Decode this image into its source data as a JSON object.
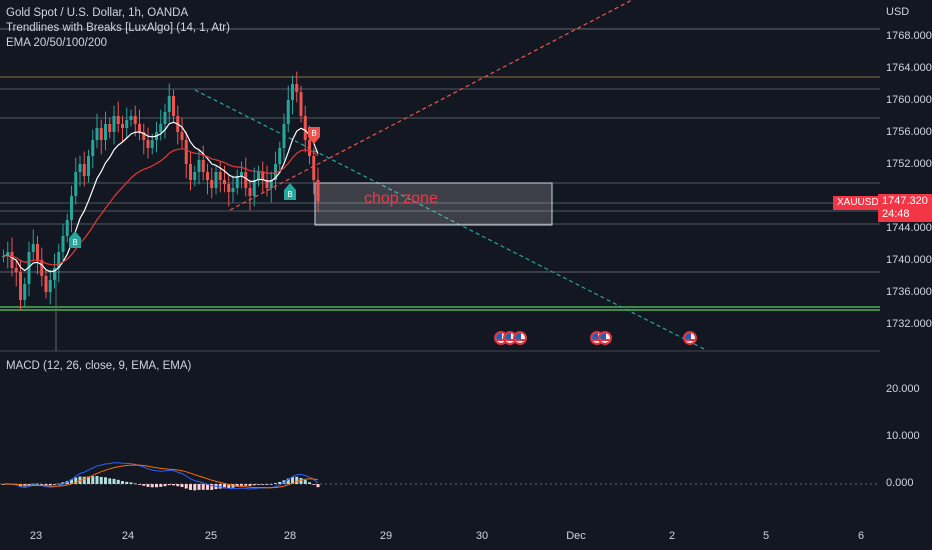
{
  "legend": {
    "symbol": "Gold Spot / U.S. Dollar, 1h, OANDA",
    "indicator1": "Trendlines with Breaks [LuxAlgo] (14, 1, Atr)",
    "indicator2": "EMA 20/50/100/200"
  },
  "macd_legend": "MACD (12, 26, close, 9, EMA, EMA)",
  "currency": "USD",
  "price_ticks": [
    "1768.000",
    "1764.000",
    "1760.000",
    "1756.000",
    "1752.000",
    "1744.000",
    "1740.000",
    "1736.000",
    "1732.000"
  ],
  "macd_ticks": [
    "20.000",
    "10.000",
    "0.000"
  ],
  "time_ticks": [
    "23",
    "24",
    "25",
    "28",
    "29",
    "30",
    "Dec",
    "2",
    "5",
    "6"
  ],
  "symbol_badge": "XAUUSD",
  "price_badge": {
    "price": "1747.320",
    "countdown": "24:48"
  },
  "annotation": "chop zone",
  "markers": {
    "break_up": "B",
    "break_down": "B"
  },
  "colors": {
    "background": "#131722",
    "up": "#26a69a",
    "down": "#ef5350",
    "ema_fast": "#ffffff",
    "ema_slow": "#e53935",
    "support": "#4caf50",
    "trend_down": "#26a69a",
    "trend_up": "#ef5350"
  },
  "icons": {
    "event": "us-flag-icon"
  }
}
